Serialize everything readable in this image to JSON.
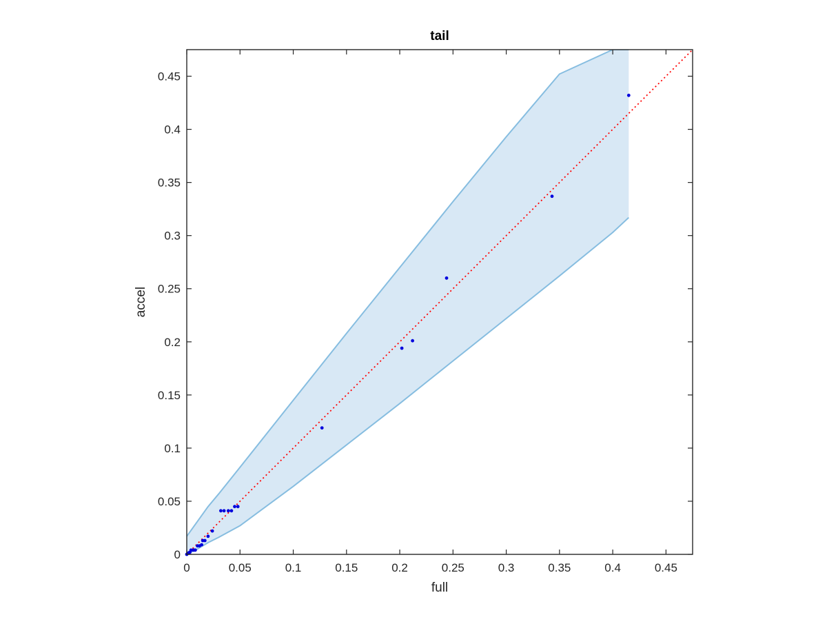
{
  "chart_data": {
    "type": "scatter",
    "title": "tail",
    "xlabel": "full",
    "ylabel": "accel",
    "xlim": [
      0,
      0.475
    ],
    "ylim": [
      0,
      0.475
    ],
    "xticks": [
      "0",
      "0.05",
      "0.1",
      "0.15",
      "0.2",
      "0.25",
      "0.3",
      "0.35",
      "0.4",
      "0.45"
    ],
    "yticks": [
      "0",
      "0.05",
      "0.1",
      "0.15",
      "0.2",
      "0.25",
      "0.3",
      "0.35",
      "0.4",
      "0.45"
    ],
    "grid": false,
    "box": true,
    "points": [
      [
        0,
        0
      ],
      [
        0.001,
        0.001
      ],
      [
        0.002,
        0.0015
      ],
      [
        0.003,
        0.002
      ],
      [
        0.004,
        0.004
      ],
      [
        0.006,
        0.004
      ],
      [
        0.007,
        0.004
      ],
      [
        0.008,
        0.004
      ],
      [
        0.01,
        0.008
      ],
      [
        0.012,
        0.008
      ],
      [
        0.014,
        0.009
      ],
      [
        0.015,
        0.013
      ],
      [
        0.017,
        0.013
      ],
      [
        0.02,
        0.017
      ],
      [
        0.024,
        0.022
      ],
      [
        0.032,
        0.041
      ],
      [
        0.035,
        0.041
      ],
      [
        0.039,
        0.041
      ],
      [
        0.042,
        0.041
      ],
      [
        0.045,
        0.045
      ],
      [
        0.048,
        0.045
      ],
      [
        0.127,
        0.119
      ],
      [
        0.202,
        0.194
      ],
      [
        0.212,
        0.201
      ],
      [
        0.244,
        0.26
      ],
      [
        0.343,
        0.337
      ],
      [
        0.415,
        0.432
      ]
    ],
    "reference_line": {
      "style": "dotted",
      "x": [
        0,
        0.475
      ],
      "y": [
        0,
        0.475
      ]
    },
    "band": {
      "x": [
        0,
        0.01,
        0.02,
        0.03,
        0.05,
        0.1,
        0.15,
        0.2,
        0.25,
        0.3,
        0.35,
        0.4,
        0.415
      ],
      "upper": [
        0.017,
        0.031,
        0.045,
        0.057,
        0.082,
        0.145,
        0.208,
        0.27,
        0.332,
        0.393,
        0.452,
        0.475,
        0.475
      ],
      "lower": [
        0,
        0.005,
        0.011,
        0.016,
        0.027,
        0.064,
        0.103,
        0.142,
        0.182,
        0.222,
        0.262,
        0.303,
        0.317
      ]
    },
    "colors": {
      "points": "#0000dd",
      "reference_line": "#ff0000",
      "band_fill": "#d8e8f5",
      "band_edge": "#86bde0",
      "axes": "#262626"
    }
  }
}
